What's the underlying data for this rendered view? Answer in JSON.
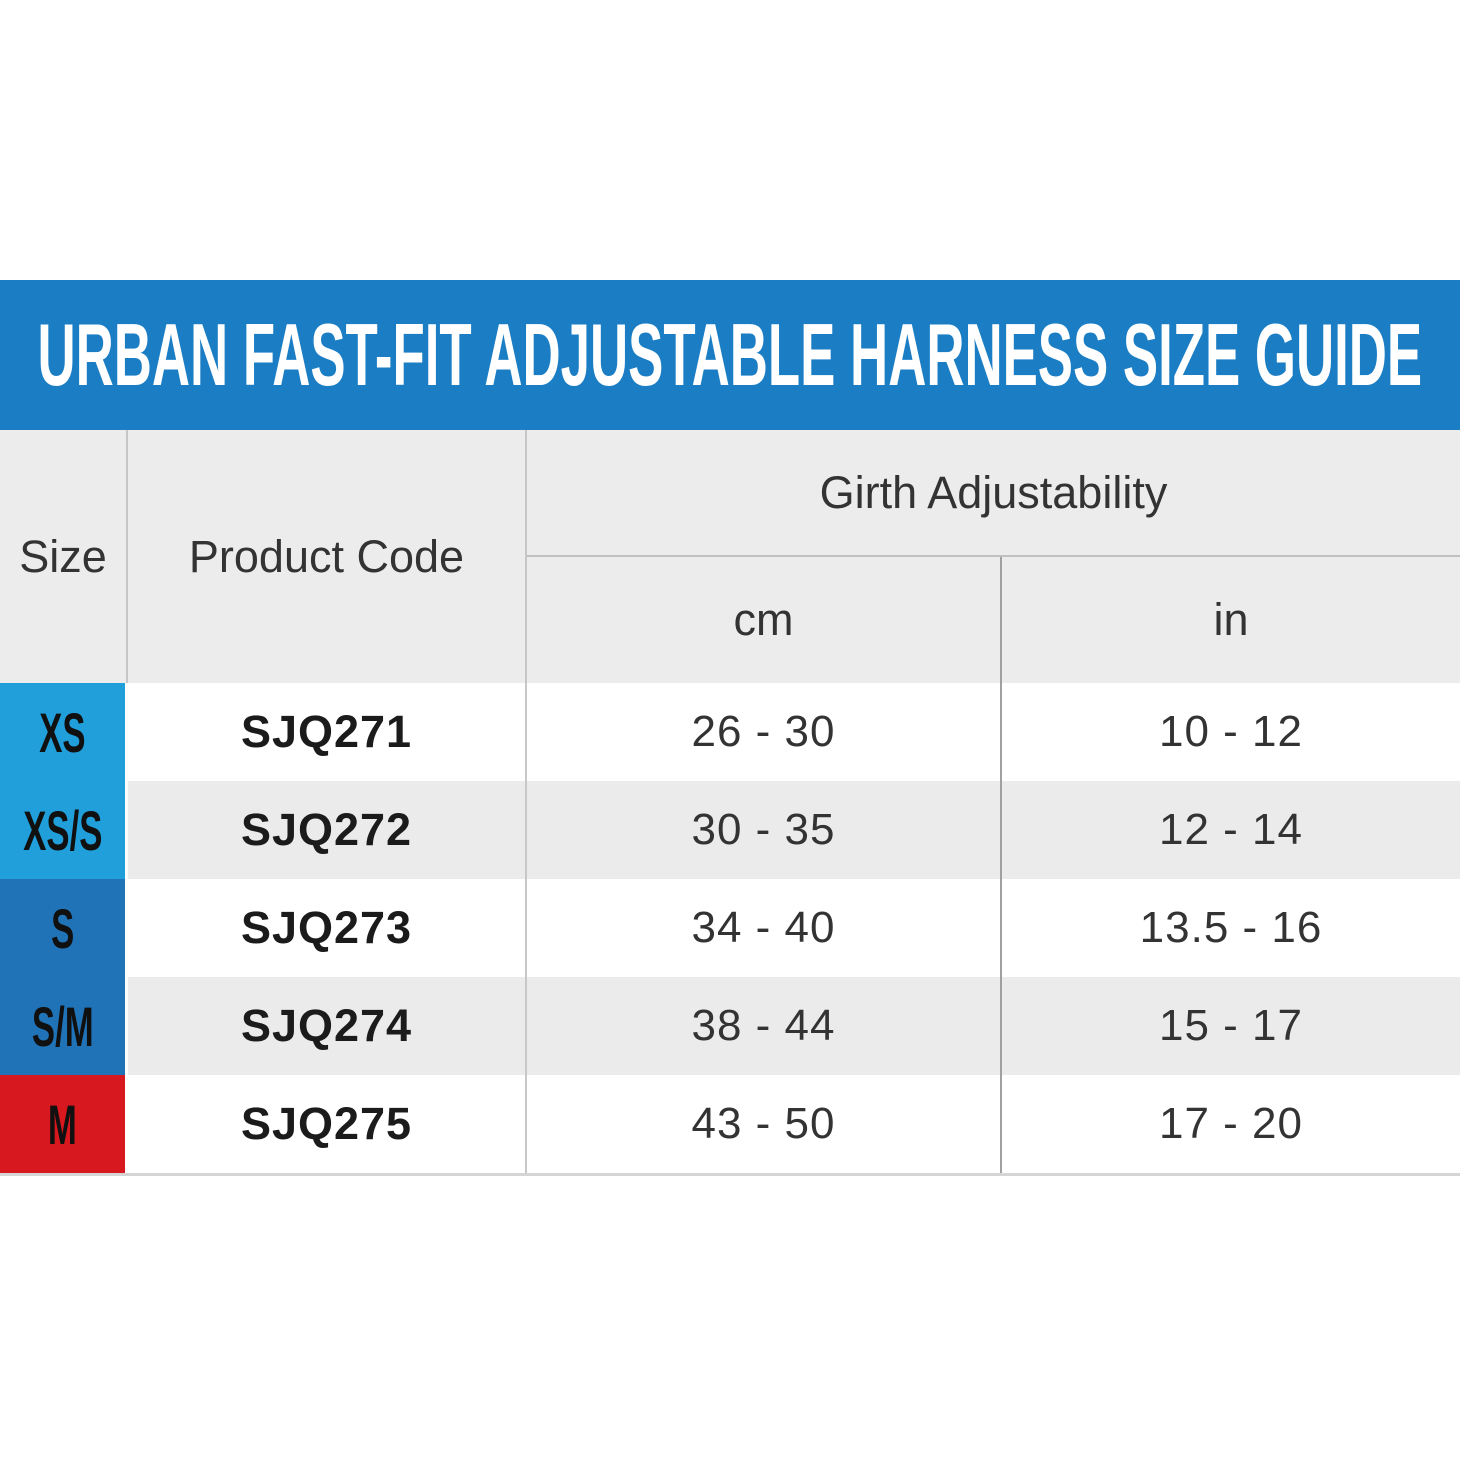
{
  "banner": {
    "title": "URBAN FAST-FIT ADJUSTABLE HARNESS SIZE GUIDE",
    "bg": "#1b7ec4",
    "text_color": "#ffffff"
  },
  "table": {
    "headers": {
      "size": "Size",
      "product_code": "Product Code",
      "girth": "Girth Adjustability",
      "cm": "cm",
      "in": "in"
    },
    "rows": [
      {
        "size": "XS",
        "code": "SJQ271",
        "cm": "26 - 30",
        "in": "10 - 12",
        "size_bg": "#209fdb"
      },
      {
        "size": "XS/S",
        "code": "SJQ272",
        "cm": "30 - 35",
        "in": "12 - 14",
        "size_bg": "#209fdb"
      },
      {
        "size": "S",
        "code": "SJQ273",
        "cm": "34 - 40",
        "in": "13.5 - 16",
        "size_bg": "#2173b8"
      },
      {
        "size": "S/M",
        "code": "SJQ274",
        "cm": "38 - 44",
        "in": "15 - 17",
        "size_bg": "#2173b8"
      },
      {
        "size": "M",
        "code": "SJQ275",
        "cm": "43 - 50",
        "in": "17 - 20",
        "size_bg": "#d7181f"
      }
    ],
    "colors": {
      "header_bg": "#ececec",
      "row_alt_bg": "#ebebeb",
      "grid_line": "#c6c6c6",
      "light_blue": "#209fdb",
      "dark_blue": "#2173b8",
      "red": "#d7181f"
    }
  },
  "chart_data": {
    "type": "table",
    "title": "URBAN FAST-FIT ADJUSTABLE HARNESS SIZE GUIDE",
    "columns": [
      "Size",
      "Product Code",
      "Girth Adjustability cm",
      "Girth Adjustability in"
    ],
    "rows": [
      [
        "XS",
        "SJQ271",
        "26 - 30",
        "10 - 12"
      ],
      [
        "XS/S",
        "SJQ272",
        "30 - 35",
        "12 - 14"
      ],
      [
        "S",
        "SJQ273",
        "34 - 40",
        "13.5 - 16"
      ],
      [
        "S/M",
        "SJQ274",
        "38 - 44",
        "15 - 17"
      ],
      [
        "M",
        "SJQ275",
        "43 - 50",
        "17 - 20"
      ]
    ]
  }
}
